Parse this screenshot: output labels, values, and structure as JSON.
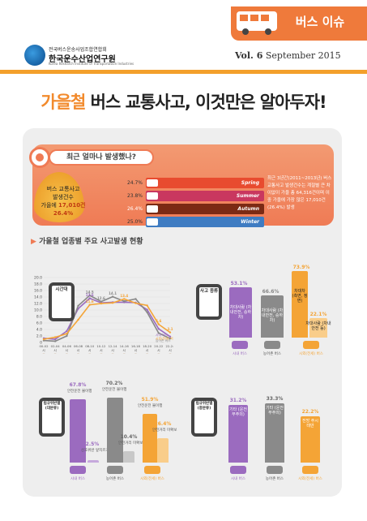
{
  "header": {
    "issue_label": "버스 이슈",
    "org_name_line1": "전국버스운송사업조합연합회",
    "org_name_line2": "한국운수산업연구원",
    "org_name_en": "Korea Research Institute of Transportation Industries",
    "volume": "Vol. 6",
    "date": "September 2015"
  },
  "title": {
    "accent": "가을철",
    "rest": " 버스 교통사고, 이것만은 알아두자!"
  },
  "section1": {
    "question": "최근 얼마나 발생했나?",
    "leaf_line1": "버스 교통사고",
    "leaf_line2": "발생건수",
    "leaf_line3_prefix": "가을에 ",
    "leaf_count": "17,010건",
    "leaf_pct": "26.4%",
    "seasons": [
      {
        "name": "Spring",
        "pct": "24.7%",
        "color": "#e84b2f"
      },
      {
        "name": "Summer",
        "pct": "23.8%",
        "color": "#c9375f"
      },
      {
        "name": "Autumn",
        "pct": "26.4%",
        "color": "#7c2a14"
      },
      {
        "name": "Winter",
        "pct": "25.0%",
        "color": "#3f7cc2"
      }
    ],
    "desc": "최근 3년간(2011~2013년) 버스 교통사고 발생건수는 계절별 큰 차이없이 가을 총 64,316건이며 이 중 가을에 가장 많은 17,010건(26.4%) 발생"
  },
  "section2": {
    "title": "가을철 업종별 주요 사고발생 현황",
    "hour_label": "시간대",
    "kind_label": "사고 종류",
    "law_label": "법규위반별 (대분류)",
    "law2_label": "법규위반별 (중분류)",
    "bus_types": [
      "시내 버스",
      "농어촌 버스",
      "시외(전세) 버스"
    ]
  },
  "chart_data": [
    {
      "type": "line",
      "title": "시간대",
      "x": [
        "00-02 시",
        "02-04 시",
        "04-06 시",
        "06-08 시",
        "08-10 시",
        "10-12 시",
        "12-14 시",
        "14-16 시",
        "16-18 시",
        "18-20 시",
        "20-22 시",
        "22-24 시"
      ],
      "ylim": [
        0,
        20
      ],
      "yticks": [
        "0",
        "2.0",
        "4.0",
        "6.0",
        "8.0",
        "10.0",
        "12.0",
        "14.0",
        "16.0",
        "18.0",
        "20.0"
      ],
      "series": [
        {
          "name": "시내 버스",
          "color": "#9b6bbf",
          "values": [
            1.3,
            1.0,
            3.5,
            10.4,
            13.6,
            12.2,
            12.4,
            12.4,
            12.3,
            10.1,
            4.2,
            1.8
          ]
        },
        {
          "name": "농어촌 버스",
          "color": "#888888",
          "values": [
            0.6,
            0.4,
            2.0,
            11.3,
            14.5,
            12.6,
            14.1,
            12.7,
            13.4,
            9.3,
            2.9,
            1.2
          ]
        },
        {
          "name": "시외(전세) 버스",
          "color": "#f4a436",
          "values": [
            1.0,
            1.6,
            2.7,
            7.0,
            11.6,
            12.0,
            12.2,
            13.4,
            12.1,
            11.4,
            5.6,
            3.1
          ]
        }
      ],
      "data_labels": [
        "14.5",
        "14.1",
        "13.6",
        "13.4",
        "12.6",
        "11.6",
        "3.1",
        "5.6"
      ]
    },
    {
      "type": "bar",
      "title": "사고 종류",
      "categories": [
        "시내 버스",
        "농어촌 버스",
        "시외(전세) 버스"
      ],
      "values": [
        53.1,
        66.6,
        73.9
      ],
      "labels": [
        "차대사람 (차내안전, 승하차)",
        "차대사람 (차내안전, 승하차)",
        "차대차 (측면, 정면)"
      ],
      "extra": {
        "value": 22.1,
        "label": "차대사람 (차내안전 등)"
      }
    },
    {
      "type": "bar",
      "title": "법규위반별 (대분류)",
      "bars": [
        {
          "value": 67.8,
          "label": "안전운전 불이행",
          "group": "시내 버스"
        },
        {
          "value": 2.5,
          "label": "신호위반 앞지르기",
          "group": "시내 버스"
        },
        {
          "value": 70.2,
          "label": "안전운전 불이행",
          "group": "농어촌 버스"
        },
        {
          "value": 10.4,
          "label": "안전거리 미확보",
          "group": "농어촌 버스"
        },
        {
          "value": 51.9,
          "label": "안전운전 불이행",
          "group": "시외(전세) 버스"
        },
        {
          "value": 26.4,
          "label": "안전거리 미확보",
          "group": "시외(전세) 버스"
        }
      ]
    },
    {
      "type": "bar",
      "title": "법규위반별 (중분류)",
      "categories": [
        "시내 버스",
        "농어촌 버스",
        "시외(전세) 버스"
      ],
      "values": [
        31.2,
        33.3,
        22.2
      ],
      "labels": [
        "기타 (운전부주의)",
        "기타 (운전부주의)",
        "전방 주시 태만"
      ]
    }
  ]
}
